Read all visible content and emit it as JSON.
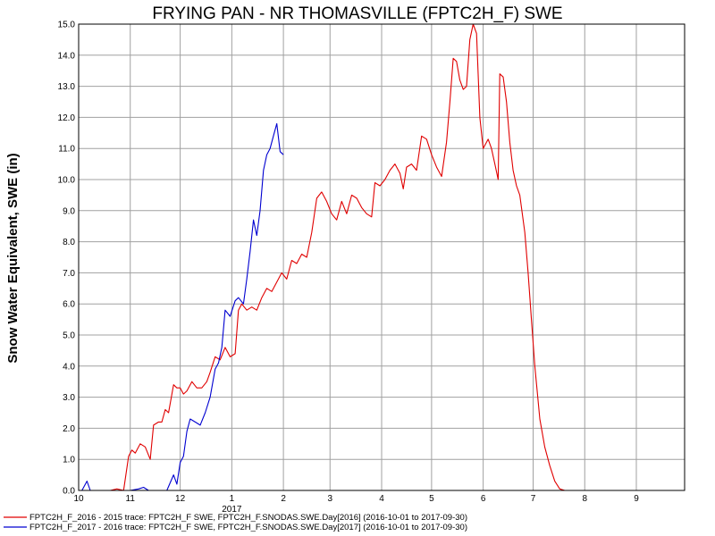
{
  "chart_data": {
    "type": "line",
    "title": "FRYING PAN - NR THOMASVILLE (FPTC2H_F) SWE",
    "ylabel": "Snow Water Equivalent, SWE (in)",
    "xlabel": "",
    "x_tick_labels": [
      "10",
      "11",
      "12",
      "1",
      "2",
      "3",
      "4",
      "5",
      "6",
      "7",
      "8",
      "9"
    ],
    "x_year_label": "2017",
    "ylim": [
      0,
      15
    ],
    "y_ticks": [
      "0.0",
      "1.0",
      "2.0",
      "3.0",
      "4.0",
      "5.0",
      "6.0",
      "7.0",
      "8.0",
      "9.0",
      "10.0",
      "11.0",
      "12.0",
      "13.0",
      "14.0",
      "15.0"
    ],
    "grid": "horizontal and vertical",
    "legend_position": "bottom",
    "series": [
      {
        "name": "FPTC2H_F_2016 - 2015 trace: FPTC2H_F SWE, FPTC2H_F.SNODAS.SWE.Day[2016] (2016-10-01 to 2017-09-30)",
        "color": "#e00000",
        "points": [
          [
            "2016-10-01",
            0
          ],
          [
            "2016-10-20",
            0
          ],
          [
            "2016-10-24",
            0.05
          ],
          [
            "2016-10-28",
            0
          ],
          [
            "2016-10-31",
            1.1
          ],
          [
            "2016-11-02",
            1.3
          ],
          [
            "2016-11-04",
            1.2
          ],
          [
            "2016-11-07",
            1.5
          ],
          [
            "2016-11-10",
            1.4
          ],
          [
            "2016-11-13",
            1.0
          ],
          [
            "2016-11-15",
            2.1
          ],
          [
            "2016-11-18",
            2.2
          ],
          [
            "2016-11-20",
            2.2
          ],
          [
            "2016-11-22",
            2.6
          ],
          [
            "2016-11-24",
            2.5
          ],
          [
            "2016-11-27",
            3.4
          ],
          [
            "2016-11-29",
            3.3
          ],
          [
            "2016-12-01",
            3.3
          ],
          [
            "2016-12-03",
            3.1
          ],
          [
            "2016-12-05",
            3.2
          ],
          [
            "2016-12-08",
            3.5
          ],
          [
            "2016-12-11",
            3.3
          ],
          [
            "2016-12-14",
            3.3
          ],
          [
            "2016-12-17",
            3.5
          ],
          [
            "2016-12-19",
            3.8
          ],
          [
            "2016-12-22",
            4.3
          ],
          [
            "2016-12-25",
            4.2
          ],
          [
            "2016-12-28",
            4.6
          ],
          [
            "2016-12-31",
            4.3
          ],
          [
            "2017-01-03",
            4.4
          ],
          [
            "2017-01-05",
            5.8
          ],
          [
            "2017-01-07",
            6.0
          ],
          [
            "2017-01-10",
            5.8
          ],
          [
            "2017-01-13",
            5.9
          ],
          [
            "2017-01-16",
            5.8
          ],
          [
            "2017-01-19",
            6.2
          ],
          [
            "2017-01-22",
            6.5
          ],
          [
            "2017-01-25",
            6.4
          ],
          [
            "2017-01-28",
            6.7
          ],
          [
            "2017-01-31",
            7.0
          ],
          [
            "2017-02-03",
            6.8
          ],
          [
            "2017-02-06",
            7.4
          ],
          [
            "2017-02-09",
            7.3
          ],
          [
            "2017-02-12",
            7.6
          ],
          [
            "2017-02-15",
            7.5
          ],
          [
            "2017-02-18",
            8.3
          ],
          [
            "2017-02-21",
            9.4
          ],
          [
            "2017-02-24",
            9.6
          ],
          [
            "2017-02-27",
            9.3
          ],
          [
            "2017-03-02",
            8.9
          ],
          [
            "2017-03-05",
            8.7
          ],
          [
            "2017-03-08",
            9.3
          ],
          [
            "2017-03-11",
            8.9
          ],
          [
            "2017-03-14",
            9.5
          ],
          [
            "2017-03-17",
            9.4
          ],
          [
            "2017-03-20",
            9.1
          ],
          [
            "2017-03-23",
            8.9
          ],
          [
            "2017-03-26",
            8.8
          ],
          [
            "2017-03-28",
            9.9
          ],
          [
            "2017-03-31",
            9.8
          ],
          [
            "2017-04-03",
            10.0
          ],
          [
            "2017-04-06",
            10.3
          ],
          [
            "2017-04-09",
            10.5
          ],
          [
            "2017-04-12",
            10.2
          ],
          [
            "2017-04-14",
            9.7
          ],
          [
            "2017-04-16",
            10.4
          ],
          [
            "2017-04-19",
            10.5
          ],
          [
            "2017-04-22",
            10.3
          ],
          [
            "2017-04-25",
            11.4
          ],
          [
            "2017-04-28",
            11.3
          ],
          [
            "2017-05-01",
            10.8
          ],
          [
            "2017-05-04",
            10.4
          ],
          [
            "2017-05-07",
            10.1
          ],
          [
            "2017-05-10",
            11.2
          ],
          [
            "2017-05-12",
            12.5
          ],
          [
            "2017-05-14",
            13.9
          ],
          [
            "2017-05-16",
            13.8
          ],
          [
            "2017-05-18",
            13.2
          ],
          [
            "2017-05-20",
            12.9
          ],
          [
            "2017-05-22",
            13.0
          ],
          [
            "2017-05-24",
            14.5
          ],
          [
            "2017-05-26",
            15.0
          ],
          [
            "2017-05-28",
            14.7
          ],
          [
            "2017-05-30",
            12.0
          ],
          [
            "2017-06-01",
            11.0
          ],
          [
            "2017-06-04",
            11.3
          ],
          [
            "2017-06-06",
            11.0
          ],
          [
            "2017-06-08",
            10.5
          ],
          [
            "2017-06-10",
            10.0
          ],
          [
            "2017-06-11",
            13.4
          ],
          [
            "2017-06-13",
            13.3
          ],
          [
            "2017-06-15",
            12.5
          ],
          [
            "2017-06-17",
            11.2
          ],
          [
            "2017-06-19",
            10.3
          ],
          [
            "2017-06-21",
            9.8
          ],
          [
            "2017-06-23",
            9.5
          ],
          [
            "2017-06-26",
            8.3
          ],
          [
            "2017-06-28",
            7.0
          ],
          [
            "2017-06-30",
            5.5
          ],
          [
            "2017-07-02",
            4.0
          ],
          [
            "2017-07-05",
            2.3
          ],
          [
            "2017-07-08",
            1.4
          ],
          [
            "2017-07-11",
            0.8
          ],
          [
            "2017-07-14",
            0.3
          ],
          [
            "2017-07-17",
            0.05
          ],
          [
            "2017-07-20",
            0
          ],
          [
            "2017-09-30",
            0
          ]
        ]
      },
      {
        "name": "FPTC2H_F_2017 - 2016 trace: FPTC2H_F SWE, FPTC2H_F.SNODAS.SWE.Day[2017] (2016-10-01 to 2017-09-30)",
        "color": "#0000d0",
        "points": [
          [
            "2016-10-01",
            0
          ],
          [
            "2016-10-03",
            0
          ],
          [
            "2016-10-06",
            0.3
          ],
          [
            "2016-10-08",
            0
          ],
          [
            "2016-11-01",
            0
          ],
          [
            "2016-11-06",
            0.05
          ],
          [
            "2016-11-09",
            0.1
          ],
          [
            "2016-11-12",
            0
          ],
          [
            "2016-11-23",
            0
          ],
          [
            "2016-11-27",
            0.5
          ],
          [
            "2016-11-29",
            0.2
          ],
          [
            "2016-12-01",
            0.9
          ],
          [
            "2016-12-03",
            1.1
          ],
          [
            "2016-12-05",
            1.9
          ],
          [
            "2016-12-07",
            2.3
          ],
          [
            "2016-12-10",
            2.2
          ],
          [
            "2016-12-13",
            2.1
          ],
          [
            "2016-12-16",
            2.5
          ],
          [
            "2016-12-19",
            3.0
          ],
          [
            "2016-12-22",
            3.9
          ],
          [
            "2016-12-24",
            4.1
          ],
          [
            "2016-12-26",
            4.6
          ],
          [
            "2016-12-28",
            5.8
          ],
          [
            "2016-12-31",
            5.6
          ],
          [
            "2017-01-03",
            6.1
          ],
          [
            "2017-01-05",
            6.2
          ],
          [
            "2017-01-08",
            6.0
          ],
          [
            "2017-01-10",
            6.8
          ],
          [
            "2017-01-12",
            7.7
          ],
          [
            "2017-01-14",
            8.7
          ],
          [
            "2017-01-16",
            8.2
          ],
          [
            "2017-01-18",
            9.0
          ],
          [
            "2017-01-20",
            10.3
          ],
          [
            "2017-01-22",
            10.8
          ],
          [
            "2017-01-24",
            11.0
          ],
          [
            "2017-01-26",
            11.4
          ],
          [
            "2017-01-28",
            11.8
          ],
          [
            "2017-01-30",
            10.9
          ],
          [
            "2017-02-01",
            10.8
          ]
        ]
      }
    ]
  }
}
